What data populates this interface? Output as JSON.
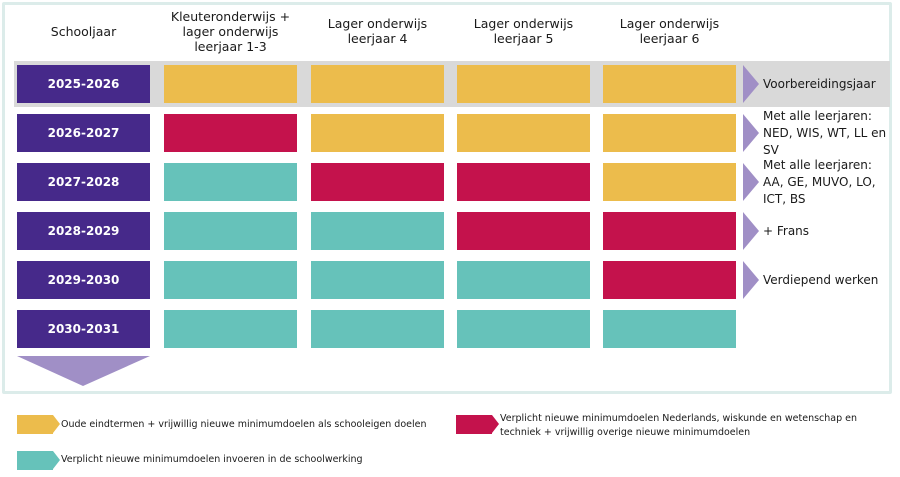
{
  "colors": {
    "purple": "#46298a",
    "yellow": "#ecbc4c",
    "red": "#c4124c",
    "teal": "#66c2ba",
    "arrow": "#a08fc6",
    "highlight_band": "#d9d9d9"
  },
  "headers": {
    "schooljaar": "Schooljaar",
    "col1": "Kleuteronderwijs + lager onderwijs leerjaar 1-3",
    "col2": "Lager onderwijs leerjaar 4",
    "col3": "Lager onderwijs leerjaar 5",
    "col4": "Lager onderwijs leerjaar 6"
  },
  "rows": [
    {
      "year": "2025-2026",
      "cells": [
        "yellow",
        "yellow",
        "yellow",
        "yellow"
      ],
      "note": "Voorbereidingsjaar"
    },
    {
      "year": "2026-2027",
      "cells": [
        "red",
        "yellow",
        "yellow",
        "yellow"
      ],
      "note": "Met alle leerjaren: NED, WIS, WT, LL en SV"
    },
    {
      "year": "2027-2028",
      "cells": [
        "teal",
        "red",
        "red",
        "yellow"
      ],
      "note": "Met alle leerjaren: AA, GE, MUVO, LO, ICT, BS"
    },
    {
      "year": "2028-2029",
      "cells": [
        "teal",
        "teal",
        "red",
        "red"
      ],
      "note": "+ Frans"
    },
    {
      "year": "2029-2030",
      "cells": [
        "teal",
        "teal",
        "teal",
        "red"
      ],
      "note": "Verdiepend werken"
    },
    {
      "year": "2030-2031",
      "cells": [
        "teal",
        "teal",
        "teal",
        "teal"
      ],
      "note": ""
    }
  ],
  "legend": {
    "yellow": "Oude eindtermen + vrijwillig nieuwe minimumdoelen als schooleigen doelen",
    "red": "Verplicht nieuwe minimumdoelen Nederlands, wiskunde en wetenschap en techniek + vrijwillig overige nieuwe minimumdoelen",
    "teal": "Verplicht nieuwe minimumdoelen invoeren in de schoolwerking"
  }
}
